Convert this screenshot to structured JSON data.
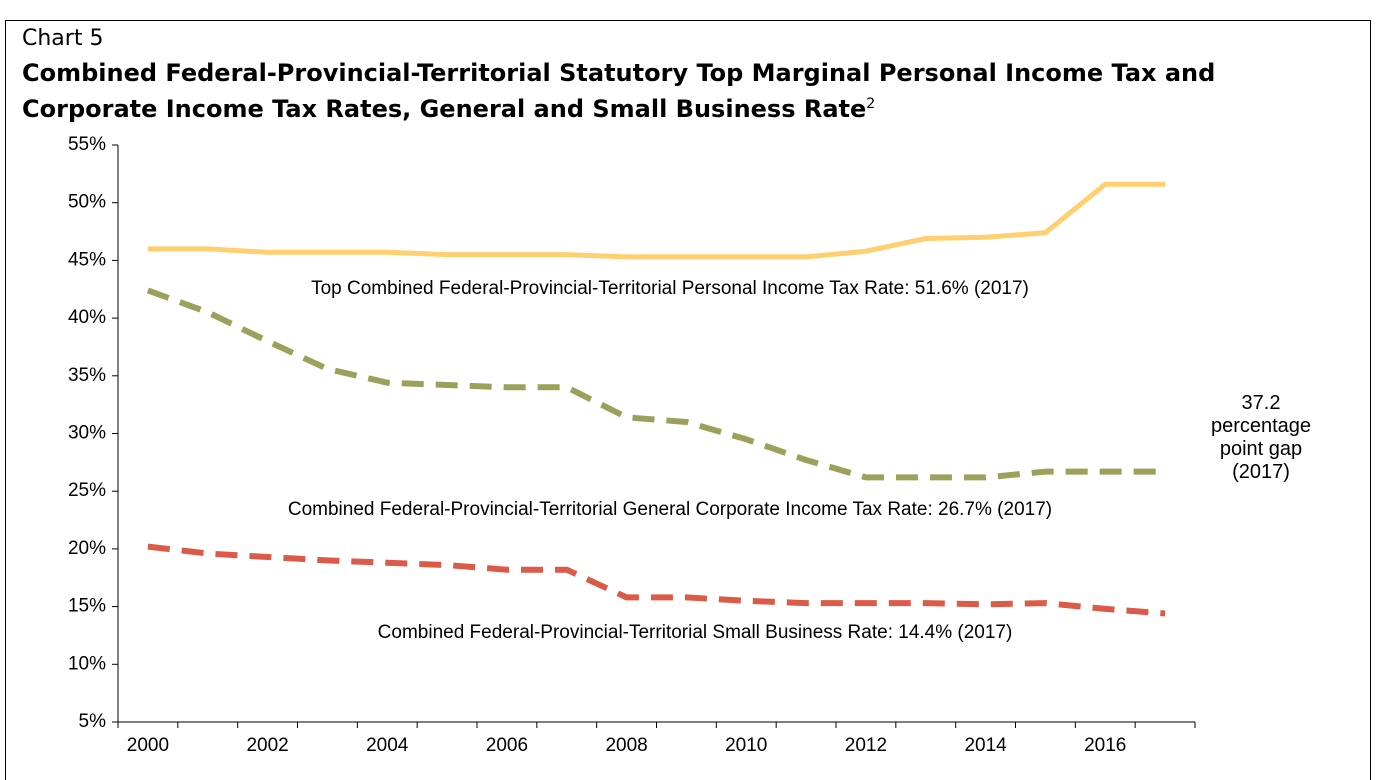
{
  "chart_data": {
    "type": "line",
    "label": "Chart 5",
    "title": "Combined Federal-Provincial-Territorial Statutory Top Marginal Personal Income Tax and Corporate Income Tax Rates, General and Small Business Rate",
    "title_note": "2",
    "categories": [
      "2000",
      null,
      "2002",
      null,
      "2004",
      null,
      "2006",
      null,
      "2008",
      null,
      "2010",
      null,
      "2012",
      null,
      "2014",
      null,
      "2016",
      null
    ],
    "series": [
      {
        "name": "Top Combined Federal-Provincial-Territorial Personal Income Tax Rate: 51.6% (2017)",
        "color": "#ffcf70",
        "dash": false,
        "values": [
          46.0,
          46.0,
          45.7,
          45.7,
          45.7,
          45.5,
          45.5,
          45.5,
          45.3,
          45.3,
          45.3,
          45.3,
          45.8,
          46.9,
          47.0,
          47.4,
          51.6,
          51.6
        ]
      },
      {
        "name": "Combined Federal-Provincial-Territorial General Corporate Income Tax Rate: 26.7% (2017)",
        "color": "#9ba15a",
        "dash": true,
        "values": [
          42.4,
          40.5,
          38.0,
          35.6,
          34.4,
          34.2,
          34.0,
          34.0,
          31.4,
          31.0,
          29.5,
          27.7,
          26.2,
          26.2,
          26.2,
          26.7,
          26.7,
          26.7
        ]
      },
      {
        "name": "Combined Federal-Provincial-Territorial Small Business Rate: 14.4% (2017)",
        "color": "#db5a48",
        "dash": true,
        "values": [
          20.2,
          19.6,
          19.3,
          19.0,
          18.8,
          18.6,
          18.2,
          18.2,
          15.8,
          15.8,
          15.5,
          15.3,
          15.3,
          15.3,
          15.2,
          15.3,
          14.8,
          14.4
        ]
      }
    ],
    "annotation": "37.2 percentage point gap (2017)",
    "ylim": [
      5,
      55
    ],
    "yticks": [
      {
        "value": 5,
        "label": "5%"
      },
      {
        "value": 10,
        "label": "10%"
      },
      {
        "value": 15,
        "label": "15%"
      },
      {
        "value": 20,
        "label": "20%"
      },
      {
        "value": 25,
        "label": "25%"
      },
      {
        "value": 30,
        "label": "30%"
      },
      {
        "value": 35,
        "label": "35%"
      },
      {
        "value": 40,
        "label": "40%"
      },
      {
        "value": 45,
        "label": "45%"
      },
      {
        "value": 50,
        "label": "50%"
      },
      {
        "value": 55,
        "label": "55%"
      }
    ],
    "grid": false
  }
}
